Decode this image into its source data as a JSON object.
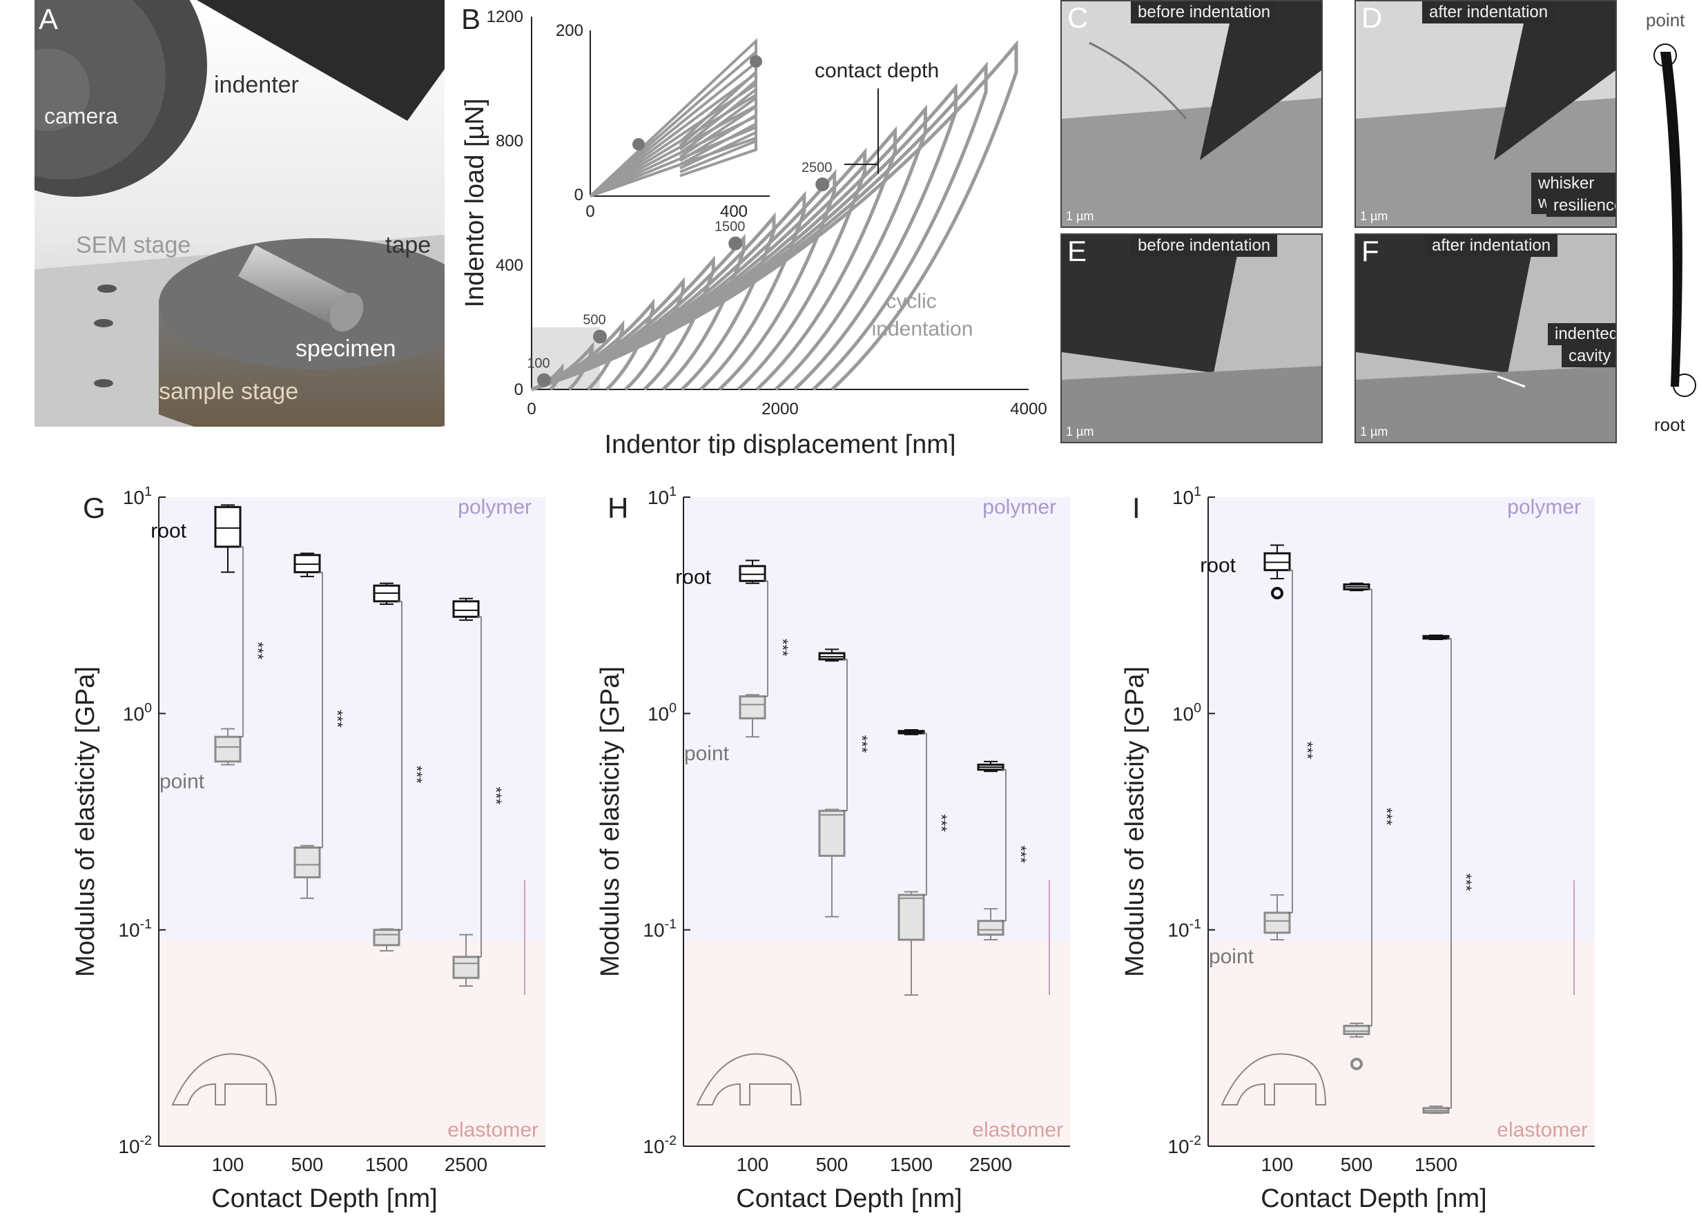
{
  "panels": {
    "A": {
      "letter": "A",
      "labels": {
        "camera": "camera",
        "indenter": "indenter",
        "sem_stage": "SEM stage",
        "tape": "tape",
        "specimen": "specimen",
        "sample_stage": "sample stage"
      }
    },
    "B": {
      "letter": "B",
      "inset_ticks": {
        "y": [
          "200",
          "0"
        ],
        "x": [
          "0",
          "400"
        ]
      },
      "annotations": {
        "contact_depth": "contact depth",
        "cyclic": "cyclic",
        "indentation": "indentation"
      },
      "point_labels": [
        "100",
        "500",
        "1500",
        "2500"
      ]
    },
    "C": {
      "letter": "C",
      "caption": "before indentation",
      "scale": "1 µm"
    },
    "D": {
      "letter": "D",
      "caption": "after indentation",
      "scale": "1 µm",
      "note1": "whisker wall",
      "note2": "resilience"
    },
    "E": {
      "letter": "E",
      "caption": "before indentation",
      "scale": "1 µm"
    },
    "F": {
      "letter": "F",
      "caption": "after indentation",
      "scale": "1 µm",
      "note1": "indented",
      "note2": "cavity"
    },
    "whisker": {
      "point": "point",
      "root": "root"
    }
  },
  "colors": {
    "polymer_bg": "#f4f2fb",
    "elastomer_bg": "#fbf2f2",
    "polymer_text": "#a999cc",
    "elastomer_text": "#d9a0a0",
    "curve": "#9a9a9a",
    "root_box": "#111111",
    "point_box": "#8a8a8a"
  },
  "chart_data": [
    {
      "type": "line",
      "panel": "B",
      "xlabel": "Indentor tip displacement [nm]",
      "ylabel": "Indentor load [µN]",
      "xlim": [
        0,
        4000
      ],
      "ylim": [
        0,
        1200
      ],
      "xticks": [
        "0",
        "2000",
        "4000"
      ],
      "yticks": [
        "0",
        "400",
        "800",
        "1200"
      ],
      "series": [
        {
          "name": "cyclic indentation",
          "x": [
            0,
            500,
            1000,
            1500,
            2000,
            2500,
            3000,
            3500,
            3900
          ],
          "y": [
            0,
            80,
            200,
            350,
            510,
            690,
            860,
            1010,
            1110
          ]
        }
      ],
      "points": [
        {
          "label": "100",
          "x": 100,
          "y": 30
        },
        {
          "label": "500",
          "x": 550,
          "y": 170
        },
        {
          "label": "1500",
          "x": 1640,
          "y": 470
        },
        {
          "label": "2500",
          "x": 2340,
          "y": 660
        }
      ]
    },
    {
      "type": "box",
      "panel": "G",
      "letter": "G",
      "xlabel": "Contact Depth [nm]",
      "ylabel": "Modulus of elasticity [GPa]",
      "yscale": "log",
      "ylim": [
        0.01,
        10
      ],
      "yticks": [
        "10^1",
        "10^0",
        "10^-1",
        "10^-2"
      ],
      "categories": [
        "100",
        "500",
        "1500",
        "2500"
      ],
      "region_labels": {
        "polymer": "polymer",
        "elastomer": "elastomer"
      },
      "sig": "***",
      "series": [
        {
          "name": "root",
          "boxes": [
            {
              "min": 4.5,
              "q1": 5.9,
              "med": 7.2,
              "q3": 9.0,
              "max": 9.2
            },
            {
              "min": 4.3,
              "q1": 4.5,
              "med": 4.9,
              "q3": 5.4,
              "max": 5.5
            },
            {
              "min": 3.2,
              "q1": 3.3,
              "med": 3.6,
              "q3": 3.9,
              "max": 4.0
            },
            {
              "min": 2.7,
              "q1": 2.8,
              "med": 3.0,
              "q3": 3.3,
              "max": 3.4
            }
          ]
        },
        {
          "name": "point",
          "boxes": [
            {
              "min": 0.58,
              "q1": 0.6,
              "med": 0.7,
              "q3": 0.78,
              "max": 0.85
            },
            {
              "min": 0.14,
              "q1": 0.175,
              "med": 0.2,
              "q3": 0.24,
              "max": 0.245
            },
            {
              "min": 0.08,
              "q1": 0.085,
              "med": 0.095,
              "q3": 0.1,
              "max": 0.101
            },
            {
              "min": 0.055,
              "q1": 0.06,
              "med": 0.07,
              "q3": 0.075,
              "max": 0.095
            }
          ]
        }
      ]
    },
    {
      "type": "box",
      "panel": "H",
      "letter": "H",
      "xlabel": "Contact Depth [nm]",
      "ylabel": "Modulus of elasticity [GPa]",
      "yscale": "log",
      "ylim": [
        0.01,
        10
      ],
      "yticks": [
        "10^1",
        "10^0",
        "10^-1",
        "10^-2"
      ],
      "categories": [
        "100",
        "500",
        "1500",
        "2500"
      ],
      "region_labels": {
        "polymer": "polymer",
        "elastomer": "elastomer"
      },
      "sig": "***",
      "series": [
        {
          "name": "root",
          "boxes": [
            {
              "min": 4.0,
              "q1": 4.1,
              "med": 4.4,
              "q3": 4.8,
              "max": 5.1
            },
            {
              "min": 1.75,
              "q1": 1.78,
              "med": 1.83,
              "q3": 1.9,
              "max": 1.98
            },
            {
              "min": 0.8,
              "q1": 0.81,
              "med": 0.82,
              "q3": 0.83,
              "max": 0.84
            },
            {
              "min": 0.54,
              "q1": 0.55,
              "med": 0.565,
              "q3": 0.58,
              "max": 0.6
            }
          ]
        },
        {
          "name": "point",
          "boxes": [
            {
              "min": 0.78,
              "q1": 0.95,
              "med": 1.1,
              "q3": 1.2,
              "max": 1.22
            },
            {
              "min": 0.115,
              "q1": 0.22,
              "med": 0.34,
              "q3": 0.355,
              "max": 0.36
            },
            {
              "min": 0.05,
              "q1": 0.09,
              "med": 0.14,
              "q3": 0.145,
              "max": 0.15
            },
            {
              "min": 0.09,
              "q1": 0.095,
              "med": 0.1,
              "q3": 0.11,
              "max": 0.125
            }
          ]
        }
      ]
    },
    {
      "type": "box",
      "panel": "I",
      "letter": "I",
      "xlabel": "Contact Depth [nm]",
      "ylabel": "Modulus of elasticity [GPa]",
      "yscale": "log",
      "ylim": [
        0.01,
        10
      ],
      "yticks": [
        "10^1",
        "10^0",
        "10^-1",
        "10^-2"
      ],
      "categories": [
        "100",
        "500",
        "1500"
      ],
      "region_labels": {
        "polymer": "polymer",
        "elastomer": "elastomer"
      },
      "sig": "***",
      "series": [
        {
          "name": "root",
          "boxes": [
            {
              "min": 4.2,
              "q1": 4.6,
              "med": 5.0,
              "q3": 5.5,
              "max": 6.0,
              "outlier": 3.6
            },
            {
              "min": 3.7,
              "q1": 3.75,
              "med": 3.85,
              "q3": 3.95,
              "max": 4.0
            },
            {
              "min": 2.2,
              "q1": 2.22,
              "med": 2.25,
              "q3": 2.28,
              "max": 2.3
            }
          ]
        },
        {
          "name": "point",
          "boxes": [
            {
              "min": 0.09,
              "q1": 0.097,
              "med": 0.11,
              "q3": 0.12,
              "max": 0.145
            },
            {
              "min": 0.032,
              "q1": 0.033,
              "med": 0.034,
              "q3": 0.036,
              "max": 0.037,
              "outlier": 0.024
            },
            {
              "min": 0.0142,
              "q1": 0.0143,
              "med": 0.0146,
              "q3": 0.015,
              "max": 0.0153
            }
          ]
        }
      ]
    }
  ]
}
